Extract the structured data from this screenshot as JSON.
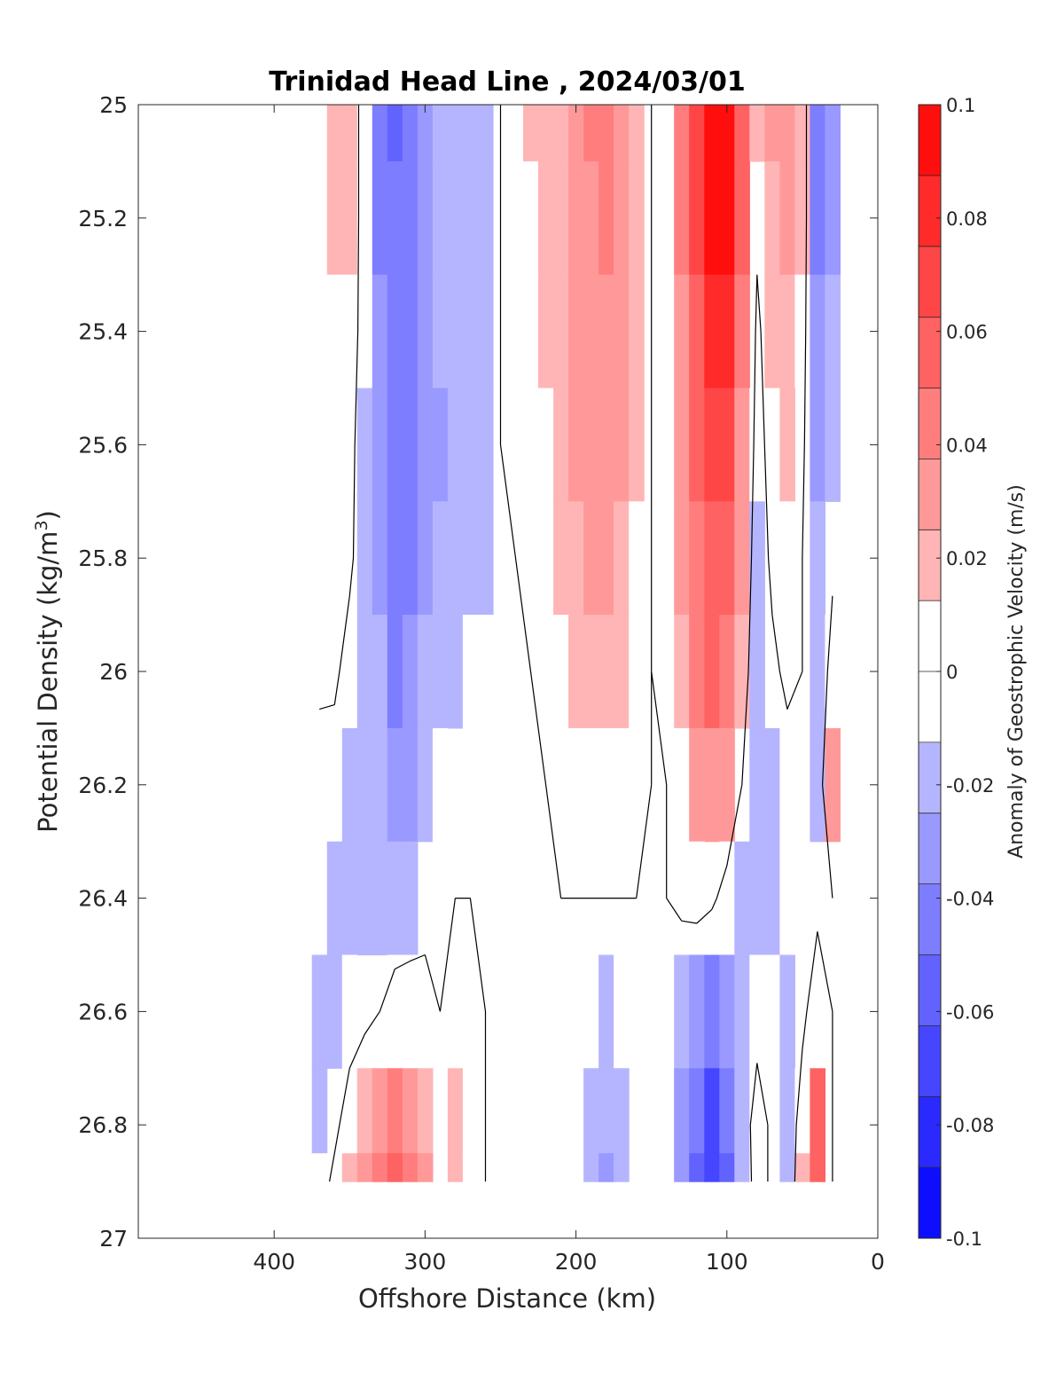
{
  "chart_data": {
    "type": "heatmap",
    "title": "Trinidad Head Line , 2024/03/01",
    "xlabel": "Offshore Distance (km)",
    "ylabel_main": "Potential Density (kg/m",
    "ylabel_sup": "3",
    "ylabel_close": ")",
    "xlim": [
      490,
      0
    ],
    "ylim": [
      25,
      27
    ],
    "x_reversed": true,
    "y_reversed": true,
    "x_ticks": [
      400,
      300,
      200,
      100,
      0
    ],
    "x_tick_labels": [
      "400",
      "300",
      "200",
      "100",
      "0"
    ],
    "y_ticks": [
      25,
      25.2,
      25.4,
      25.6,
      25.8,
      26,
      26.2,
      26.4,
      26.6,
      26.8,
      27
    ],
    "y_tick_labels": [
      "25",
      "25.2",
      "25.4",
      "25.6",
      "25.8",
      "26",
      "26.2",
      "26.4",
      "26.6",
      "26.8",
      "27"
    ],
    "colorbar": {
      "label": "Anomaly of Geostrophic Velocity (m/s)",
      "range": [
        -0.1,
        0.1
      ],
      "levels": 16,
      "colormap": "blue-white-red",
      "negative_color": "#0000ff",
      "positive_color": "#ff0000",
      "tick_values": [
        0.1,
        0.08,
        0.06,
        0.04,
        0.02,
        0,
        -0.02,
        -0.04,
        -0.06,
        -0.08,
        -0.1
      ],
      "tick_labels": [
        "0.1",
        "0.08",
        "0.06",
        "0.04",
        "0.02",
        "0",
        "-0.02",
        "-0.04",
        "-0.06",
        "-0.08",
        "-0.1"
      ]
    },
    "contour_lines": "zero velocity contours (black)",
    "x": [
      370,
      360,
      350,
      340,
      330,
      320,
      310,
      300,
      290,
      280,
      270,
      260,
      250,
      240,
      230,
      220,
      210,
      200,
      190,
      180,
      170,
      160,
      150,
      140,
      130,
      120,
      110,
      100,
      90,
      80,
      70,
      60,
      50,
      40,
      30
    ],
    "y": [
      25.0,
      25.2,
      25.4,
      25.6,
      25.8,
      26.0,
      26.2,
      26.4,
      26.6,
      26.8,
      26.9
    ],
    "z": [
      [
        0.01,
        0.015,
        0.015,
        -0.01,
        -0.04,
        -0.055,
        -0.045,
        -0.03,
        -0.025,
        -0.025,
        -0.02,
        -0.015,
        0,
        0.01,
        0.015,
        0.015,
        0.02,
        0.025,
        0.04,
        0.045,
        0.03,
        0.02,
        0,
        0.01,
        0.04,
        0.07,
        0.095,
        0.095,
        0.06,
        0.015,
        0.025,
        0.03,
        0.015,
        -0.04,
        -0.035
      ],
      [
        0.01,
        0.015,
        0.015,
        -0.01,
        -0.04,
        -0.05,
        -0.045,
        -0.035,
        -0.025,
        -0.025,
        -0.02,
        -0.015,
        0,
        0.01,
        0.01,
        0.015,
        0.02,
        0.025,
        0.035,
        0.04,
        0.03,
        0.02,
        0,
        0.01,
        0.04,
        0.065,
        0.09,
        0.09,
        0.055,
        0.005,
        0.02,
        0.025,
        0.015,
        -0.04,
        -0.03
      ],
      [
        0.01,
        0.012,
        0.012,
        -0.01,
        -0.035,
        -0.05,
        -0.045,
        -0.035,
        -0.025,
        -0.025,
        -0.02,
        -0.015,
        0,
        0.005,
        0.01,
        0.015,
        0.02,
        0.025,
        0.03,
        0.035,
        0.03,
        0.02,
        0,
        0.01,
        0.035,
        0.06,
        0.085,
        0.085,
        0.045,
        -0.005,
        0.015,
        0.02,
        0.01,
        -0.035,
        -0.02
      ],
      [
        0.01,
        0.012,
        0.008,
        -0.015,
        -0.035,
        -0.05,
        -0.04,
        -0.03,
        -0.03,
        -0.025,
        -0.02,
        -0.015,
        0,
        0.005,
        0.005,
        0.012,
        0.02,
        0.025,
        0.03,
        0.03,
        0.025,
        0.015,
        0,
        0.01,
        0.03,
        0.055,
        0.07,
        0.07,
        0.035,
        -0.01,
        0.01,
        0.015,
        0.005,
        -0.03,
        -0.015
      ],
      [
        0.01,
        0.01,
        0.005,
        -0.015,
        -0.03,
        -0.045,
        -0.04,
        -0.03,
        -0.025,
        -0.02,
        -0.02,
        -0.015,
        0,
        0,
        0.005,
        0.01,
        0.015,
        0.02,
        0.025,
        0.025,
        0.02,
        0.012,
        0,
        0.01,
        0.025,
        0.045,
        0.06,
        0.055,
        0.025,
        -0.015,
        0.005,
        0.01,
        0,
        -0.025,
        -0.005
      ],
      [
        0.005,
        0.005,
        -0.01,
        -0.015,
        -0.025,
        -0.04,
        -0.035,
        -0.025,
        -0.02,
        -0.015,
        -0.01,
        -0.01,
        0,
        0,
        0,
        0.005,
        0.012,
        0.015,
        0.02,
        0.02,
        0.015,
        0.01,
        0,
        0.005,
        0.02,
        0.04,
        0.05,
        0.045,
        0.015,
        -0.02,
        -0.005,
        0.005,
        0,
        -0.02,
        0.01
      ],
      [
        -0.01,
        -0.012,
        -0.015,
        -0.02,
        -0.025,
        -0.035,
        -0.03,
        -0.02,
        -0.01,
        -0.005,
        0,
        0,
        0,
        0,
        0,
        0,
        0.005,
        0.01,
        0.012,
        0.012,
        0.01,
        0.005,
        0,
        0,
        0.012,
        0.03,
        0.035,
        0.025,
        0,
        -0.02,
        -0.015,
        -0.01,
        -0.01,
        -0.015,
        0.03
      ],
      [
        -0.012,
        -0.015,
        -0.015,
        -0.015,
        -0.02,
        -0.02,
        -0.015,
        -0.005,
        0,
        0,
        0,
        0,
        0,
        0,
        0,
        0,
        0,
        0,
        0,
        0,
        0,
        0,
        0,
        0,
        0.005,
        0.01,
        0.005,
        -0.01,
        -0.02,
        -0.02,
        -0.015,
        -0.01,
        -0.01,
        -0.005,
        0
      ],
      [
        -0.015,
        -0.015,
        -0.01,
        -0.005,
        0,
        0.012,
        0.012,
        0.005,
        0,
        0.012,
        0.005,
        0,
        0,
        0,
        0,
        0,
        0,
        -0.005,
        -0.01,
        -0.015,
        -0.01,
        0,
        0,
        0,
        -0.02,
        -0.035,
        -0.045,
        -0.035,
        -0.02,
        -0.01,
        -0.01,
        -0.015,
        -0.005,
        0.012,
        0
      ],
      [
        -0.015,
        -0.005,
        0.01,
        0.02,
        0.035,
        0.045,
        0.035,
        0.02,
        0.005,
        0.015,
        0.01,
        0,
        0,
        0,
        0,
        0,
        0,
        -0.01,
        -0.02,
        -0.025,
        -0.015,
        -0.005,
        0,
        0,
        -0.03,
        -0.05,
        -0.065,
        -0.05,
        -0.015,
        0.012,
        -0.005,
        -0.015,
        0.01,
        0.05,
        0
      ],
      [
        -0.01,
        0.005,
        0.02,
        0.03,
        0.045,
        0.055,
        0.045,
        0.025,
        0.005,
        0.015,
        0.01,
        0,
        0,
        0,
        0,
        0,
        -0.005,
        -0.01,
        -0.02,
        -0.03,
        -0.02,
        -0.005,
        0,
        0,
        -0.035,
        -0.055,
        -0.07,
        -0.055,
        -0.02,
        0.012,
        -0.005,
        -0.015,
        0.015,
        0.06,
        0
      ]
    ],
    "data_extent": {
      "x": [
        370,
        30
      ],
      "y": [
        25.0,
        26.9
      ]
    }
  }
}
